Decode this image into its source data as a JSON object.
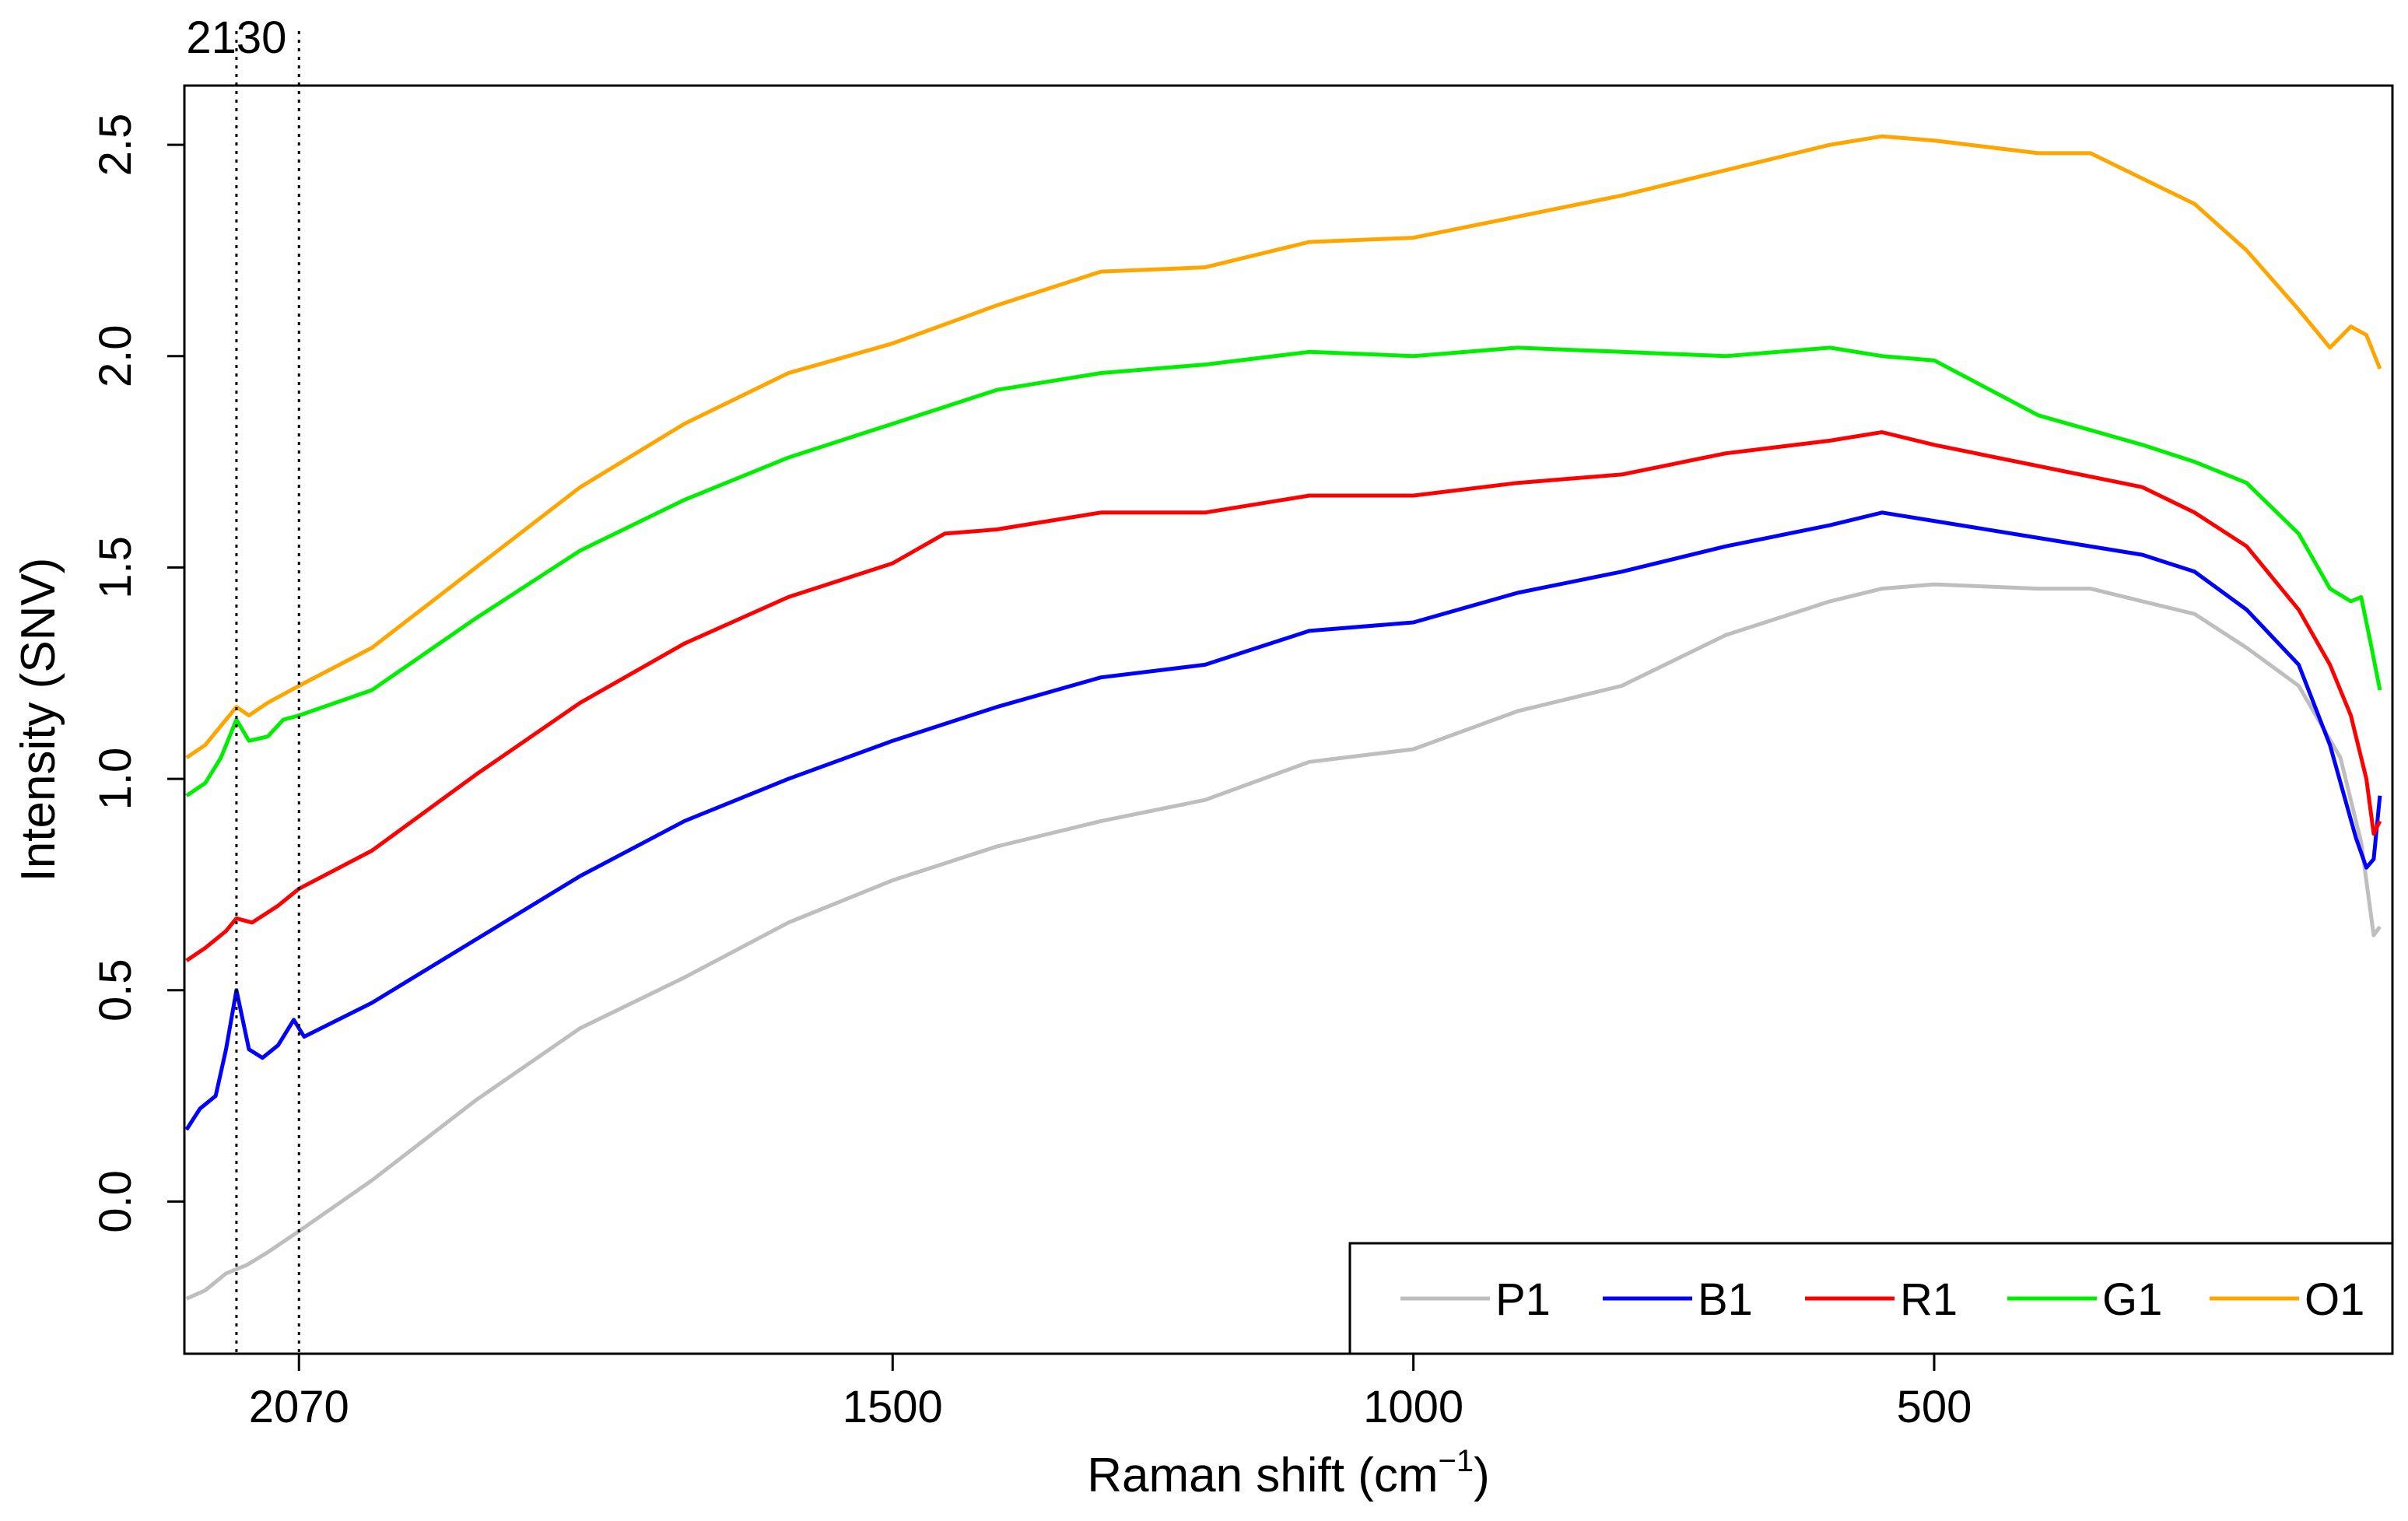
{
  "chart_data": {
    "type": "line",
    "title": "",
    "xlabel": "Raman shift (cm",
    "xlabel_superscript": "−1",
    "xlabel_suffix": ")",
    "ylabel": "Intensity (SNV)",
    "xlim": [
      2180,
      60
    ],
    "ylim": [
      -0.36,
      2.64
    ],
    "x_ticks": [
      {
        "value": 2070,
        "label": "2070"
      },
      {
        "value": 1500,
        "label": "1500"
      },
      {
        "value": 1000,
        "label": "1000"
      },
      {
        "value": 500,
        "label": "500"
      }
    ],
    "y_ticks": [
      {
        "value": 0.0,
        "label": "0.0"
      },
      {
        "value": 0.5,
        "label": "0.5"
      },
      {
        "value": 1.0,
        "label": "1.0"
      },
      {
        "value": 1.5,
        "label": "1.5"
      },
      {
        "value": 2.0,
        "label": "2.0"
      },
      {
        "value": 2.5,
        "label": "2.5"
      }
    ],
    "vlines": [
      {
        "value": 2130,
        "label": "2130",
        "style": "dotted"
      },
      {
        "value": 2070,
        "label": "",
        "style": "dotted"
      }
    ],
    "grid": false,
    "legend": {
      "position": "bottom-right",
      "orientation": "horizontal"
    },
    "series": [
      {
        "name": "P1",
        "color": "#bebebe",
        "points": [
          [
            2178,
            -0.23
          ],
          [
            2160,
            -0.21
          ],
          [
            2140,
            -0.17
          ],
          [
            2120,
            -0.15
          ],
          [
            2100,
            -0.12
          ],
          [
            2070,
            -0.07
          ],
          [
            2000,
            0.05
          ],
          [
            1900,
            0.24
          ],
          [
            1800,
            0.41
          ],
          [
            1700,
            0.53
          ],
          [
            1600,
            0.66
          ],
          [
            1500,
            0.76
          ],
          [
            1400,
            0.84
          ],
          [
            1300,
            0.9
          ],
          [
            1200,
            0.95
          ],
          [
            1100,
            1.04
          ],
          [
            1000,
            1.07
          ],
          [
            900,
            1.16
          ],
          [
            800,
            1.22
          ],
          [
            700,
            1.34
          ],
          [
            600,
            1.42
          ],
          [
            550,
            1.45
          ],
          [
            500,
            1.46
          ],
          [
            400,
            1.45
          ],
          [
            350,
            1.45
          ],
          [
            300,
            1.42
          ],
          [
            250,
            1.39
          ],
          [
            200,
            1.31
          ],
          [
            150,
            1.22
          ],
          [
            110,
            1.05
          ],
          [
            90,
            0.85
          ],
          [
            78,
            0.63
          ],
          [
            72,
            0.65
          ]
        ]
      },
      {
        "name": "B1",
        "color": "#0000ff",
        "points": [
          [
            2178,
            0.17
          ],
          [
            2165,
            0.22
          ],
          [
            2150,
            0.25
          ],
          [
            2140,
            0.36
          ],
          [
            2130,
            0.5
          ],
          [
            2118,
            0.36
          ],
          [
            2105,
            0.34
          ],
          [
            2090,
            0.37
          ],
          [
            2075,
            0.43
          ],
          [
            2065,
            0.39
          ],
          [
            2000,
            0.47
          ],
          [
            1900,
            0.62
          ],
          [
            1800,
            0.77
          ],
          [
            1700,
            0.9
          ],
          [
            1600,
            1.0
          ],
          [
            1500,
            1.09
          ],
          [
            1400,
            1.17
          ],
          [
            1300,
            1.24
          ],
          [
            1200,
            1.27
          ],
          [
            1100,
            1.35
          ],
          [
            1000,
            1.37
          ],
          [
            900,
            1.44
          ],
          [
            800,
            1.49
          ],
          [
            700,
            1.55
          ],
          [
            600,
            1.6
          ],
          [
            550,
            1.63
          ],
          [
            500,
            1.61
          ],
          [
            400,
            1.57
          ],
          [
            300,
            1.53
          ],
          [
            250,
            1.49
          ],
          [
            200,
            1.4
          ],
          [
            150,
            1.27
          ],
          [
            120,
            1.08
          ],
          [
            95,
            0.86
          ],
          [
            85,
            0.79
          ],
          [
            78,
            0.81
          ],
          [
            72,
            0.96
          ]
        ]
      },
      {
        "name": "R1",
        "color": "#ff0000",
        "points": [
          [
            2178,
            0.57
          ],
          [
            2160,
            0.6
          ],
          [
            2140,
            0.64
          ],
          [
            2130,
            0.67
          ],
          [
            2115,
            0.66
          ],
          [
            2090,
            0.7
          ],
          [
            2070,
            0.74
          ],
          [
            2000,
            0.83
          ],
          [
            1900,
            1.01
          ],
          [
            1800,
            1.18
          ],
          [
            1700,
            1.32
          ],
          [
            1600,
            1.43
          ],
          [
            1500,
            1.51
          ],
          [
            1450,
            1.58
          ],
          [
            1400,
            1.59
          ],
          [
            1300,
            1.63
          ],
          [
            1200,
            1.63
          ],
          [
            1100,
            1.67
          ],
          [
            1000,
            1.67
          ],
          [
            900,
            1.7
          ],
          [
            800,
            1.72
          ],
          [
            700,
            1.77
          ],
          [
            600,
            1.8
          ],
          [
            550,
            1.82
          ],
          [
            500,
            1.79
          ],
          [
            400,
            1.74
          ],
          [
            300,
            1.69
          ],
          [
            250,
            1.63
          ],
          [
            200,
            1.55
          ],
          [
            150,
            1.4
          ],
          [
            120,
            1.27
          ],
          [
            100,
            1.15
          ],
          [
            85,
            1.0
          ],
          [
            78,
            0.87
          ],
          [
            72,
            0.9
          ]
        ]
      },
      {
        "name": "G1",
        "color": "#00ee00",
        "points": [
          [
            2178,
            0.96
          ],
          [
            2160,
            0.99
          ],
          [
            2145,
            1.05
          ],
          [
            2130,
            1.14
          ],
          [
            2118,
            1.09
          ],
          [
            2100,
            1.1
          ],
          [
            2085,
            1.14
          ],
          [
            2070,
            1.15
          ],
          [
            2000,
            1.21
          ],
          [
            1900,
            1.38
          ],
          [
            1800,
            1.54
          ],
          [
            1700,
            1.66
          ],
          [
            1600,
            1.76
          ],
          [
            1500,
            1.84
          ],
          [
            1400,
            1.92
          ],
          [
            1300,
            1.96
          ],
          [
            1200,
            1.98
          ],
          [
            1100,
            2.01
          ],
          [
            1000,
            2.0
          ],
          [
            900,
            2.02
          ],
          [
            800,
            2.01
          ],
          [
            700,
            2.0
          ],
          [
            600,
            2.02
          ],
          [
            550,
            2.0
          ],
          [
            500,
            1.99
          ],
          [
            400,
            1.86
          ],
          [
            300,
            1.79
          ],
          [
            250,
            1.75
          ],
          [
            200,
            1.7
          ],
          [
            150,
            1.58
          ],
          [
            120,
            1.45
          ],
          [
            100,
            1.42
          ],
          [
            90,
            1.43
          ],
          [
            80,
            1.31
          ],
          [
            72,
            1.21
          ]
        ]
      },
      {
        "name": "O1",
        "color": "#ffa500",
        "points": [
          [
            2178,
            1.05
          ],
          [
            2160,
            1.08
          ],
          [
            2140,
            1.14
          ],
          [
            2130,
            1.17
          ],
          [
            2118,
            1.15
          ],
          [
            2100,
            1.18
          ],
          [
            2070,
            1.22
          ],
          [
            2000,
            1.31
          ],
          [
            1900,
            1.5
          ],
          [
            1800,
            1.69
          ],
          [
            1700,
            1.84
          ],
          [
            1600,
            1.96
          ],
          [
            1500,
            2.03
          ],
          [
            1400,
            2.12
          ],
          [
            1300,
            2.2
          ],
          [
            1200,
            2.21
          ],
          [
            1100,
            2.27
          ],
          [
            1000,
            2.28
          ],
          [
            900,
            2.33
          ],
          [
            800,
            2.38
          ],
          [
            700,
            2.44
          ],
          [
            600,
            2.5
          ],
          [
            550,
            2.52
          ],
          [
            500,
            2.51
          ],
          [
            400,
            2.48
          ],
          [
            350,
            2.48
          ],
          [
            300,
            2.42
          ],
          [
            250,
            2.36
          ],
          [
            200,
            2.25
          ],
          [
            150,
            2.11
          ],
          [
            120,
            2.02
          ],
          [
            100,
            2.07
          ],
          [
            85,
            2.05
          ],
          [
            72,
            1.97
          ]
        ]
      }
    ]
  }
}
